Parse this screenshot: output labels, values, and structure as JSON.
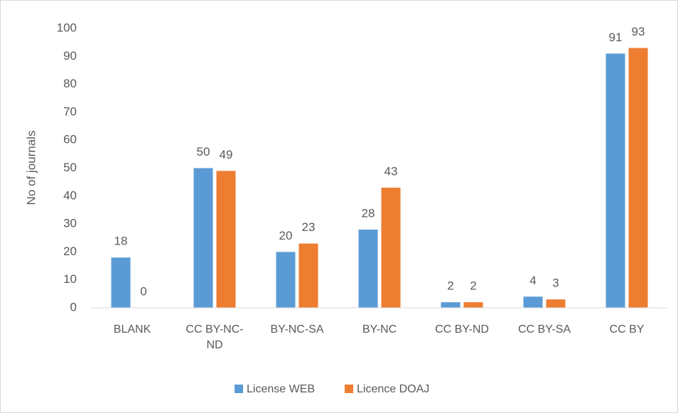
{
  "chart_data": {
    "type": "bar",
    "y_label": "No of journals",
    "categories": [
      "BLANK",
      "CC BY-NC-ND",
      "BY-NC-SA",
      "BY-NC",
      "CC BY-ND",
      "CC BY-SA",
      "CC BY"
    ],
    "series": [
      {
        "name": "License WEB",
        "color": "#5b9bd5",
        "values": [
          18,
          50,
          20,
          28,
          2,
          4,
          91
        ]
      },
      {
        "name": "Licence DOAJ",
        "color": "#ed7d31",
        "values": [
          0,
          49,
          23,
          43,
          2,
          3,
          93
        ]
      }
    ],
    "ylim": [
      0,
      100
    ],
    "yticks": [
      0,
      10,
      20,
      30,
      40,
      50,
      60,
      70,
      80,
      90,
      100
    ],
    "grid": false,
    "legend": "bottom"
  }
}
